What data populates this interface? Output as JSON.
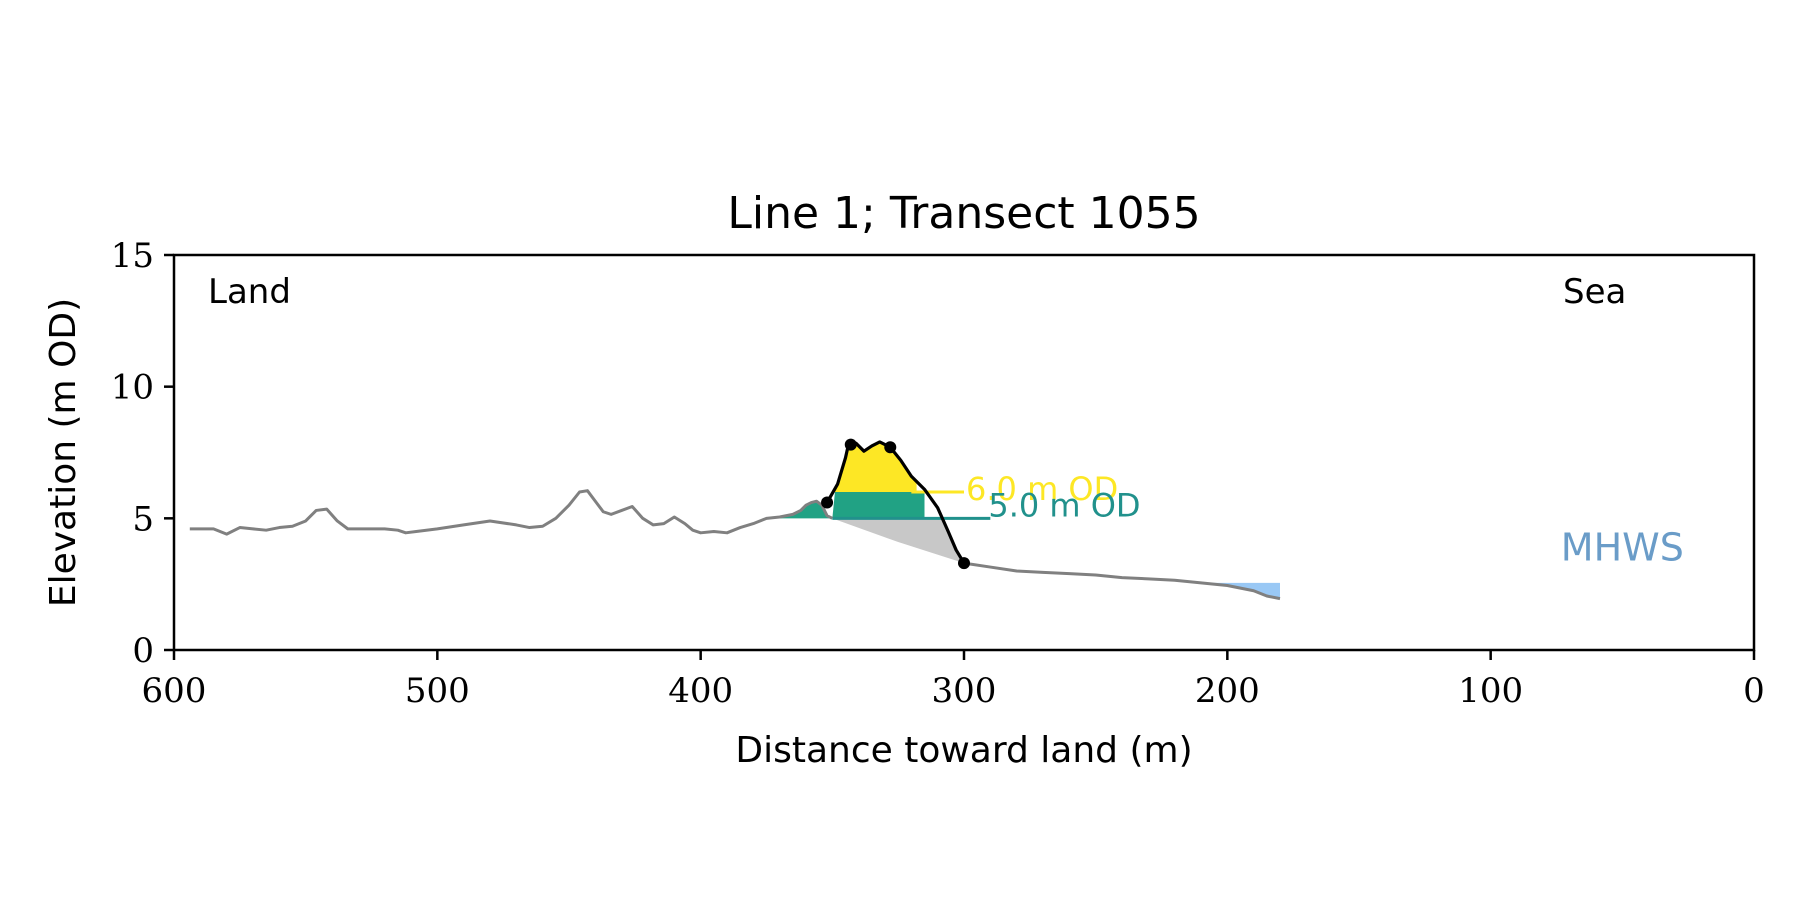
{
  "chart_data": {
    "type": "area",
    "title": "Line 1; Transect 1055",
    "xlabel": "Distance toward land (m)",
    "ylabel": "Elevation (m OD)",
    "xlim": [
      600,
      0
    ],
    "ylim": [
      0,
      15
    ],
    "x_reversed": true,
    "x_ticks": [
      600,
      500,
      400,
      300,
      200,
      100,
      0
    ],
    "y_ticks": [
      0,
      5,
      10,
      15
    ],
    "x_tick_labels": [
      "600",
      "500",
      "400",
      "300",
      "200",
      "100",
      "0"
    ],
    "y_tick_labels": [
      "0",
      "5",
      "10",
      "15"
    ],
    "annotations": {
      "land": "Land",
      "sea": "Sea"
    },
    "grid": false,
    "colors": {
      "profile": "#808080",
      "dune": "#000000",
      "above_6m": "#FDE725",
      "band_5_6m": "#21A284",
      "below_5m": "#C8C8C8",
      "mhws_fill": "#99C8F5",
      "label_6m": "#FDE725",
      "label_5m": "#21918C",
      "mhws_label": "#6A9CC8"
    },
    "profile": {
      "x": [
        594,
        585,
        580,
        575,
        570,
        565,
        560,
        555,
        550,
        546,
        542,
        538,
        534,
        528,
        520,
        515,
        512,
        508,
        500,
        490,
        480,
        470,
        465,
        460,
        455,
        450,
        446,
        443,
        440,
        437,
        434,
        430,
        426,
        422,
        418,
        414,
        410,
        406,
        403,
        400,
        395,
        390,
        385,
        380,
        375,
        370,
        365,
        362,
        360,
        358,
        356,
        354,
        352,
        350
      ],
      "y": [
        4.6,
        4.6,
        4.4,
        4.65,
        4.6,
        4.55,
        4.65,
        4.7,
        4.9,
        5.3,
        5.35,
        4.9,
        4.6,
        4.6,
        4.6,
        4.55,
        4.45,
        4.5,
        4.6,
        4.75,
        4.9,
        4.75,
        4.65,
        4.7,
        5.0,
        5.5,
        6.0,
        6.05,
        5.65,
        5.25,
        5.15,
        5.3,
        5.45,
        5.0,
        4.75,
        4.8,
        5.05,
        4.8,
        4.55,
        4.45,
        4.5,
        4.45,
        4.65,
        4.8,
        5.0,
        5.05,
        5.15,
        5.3,
        5.5,
        5.6,
        5.65,
        5.5,
        5.1,
        5.0
      ]
    },
    "profile_seaward": {
      "x": [
        300,
        290,
        280,
        270,
        260,
        250,
        240,
        230,
        220,
        210,
        200,
        190,
        185,
        180
      ],
      "y": [
        3.3,
        3.15,
        3.0,
        2.95,
        2.9,
        2.85,
        2.75,
        2.7,
        2.65,
        2.55,
        2.45,
        2.25,
        2.05,
        1.95
      ]
    },
    "dune_profile": {
      "x": [
        352,
        348,
        345,
        344,
        343,
        341,
        338,
        335,
        332,
        330,
        328,
        324,
        320,
        315,
        310,
        306,
        303,
        300
      ],
      "y": [
        5.6,
        6.3,
        7.3,
        7.75,
        7.8,
        7.85,
        7.55,
        7.75,
        7.9,
        7.8,
        7.7,
        7.2,
        6.6,
        6.1,
        5.4,
        4.5,
        3.8,
        3.3
      ]
    },
    "dune_points": {
      "x": [
        352,
        343,
        328,
        300
      ],
      "y": [
        5.6,
        7.8,
        7.7,
        3.3
      ]
    },
    "levels": [
      {
        "label": "6.0 m OD",
        "value": 6.0,
        "x_start": 320,
        "x_end": 300
      },
      {
        "label": "5.0 m OD",
        "value": 5.0,
        "x_start": 350,
        "x_end": 290
      }
    ],
    "fills": {
      "band_5_6m_x_range": [
        375,
        315
      ],
      "mhws_x_range": [
        210,
        180
      ],
      "mhws_top": 2.55
    },
    "mhws": {
      "label": "MHWS",
      "label_x": 50,
      "label_y": 3.4
    }
  }
}
